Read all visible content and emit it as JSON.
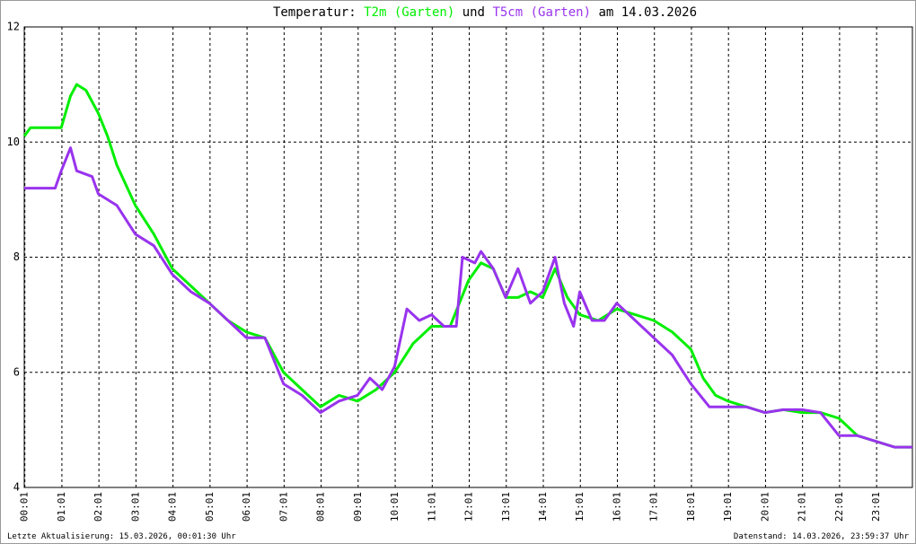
{
  "chart_data": {
    "type": "line",
    "title_prefix": "Temperatur:",
    "title_mid": "und",
    "title_suffix": "am 14.03.2026",
    "update_note": "Letzte Aktualisierung: 15.03.2026, 00:01:30 Uhr",
    "data_note": "Datenstand: 14.03.2026, 23:59:37 Uhr",
    "xlim": [
      0,
      1439
    ],
    "xticks": [
      {
        "value": 1,
        "label": "00:01"
      },
      {
        "value": 61,
        "label": "01:01"
      },
      {
        "value": 121,
        "label": "02:01"
      },
      {
        "value": 181,
        "label": "03:01"
      },
      {
        "value": 241,
        "label": "04:01"
      },
      {
        "value": 301,
        "label": "05:01"
      },
      {
        "value": 361,
        "label": "06:01"
      },
      {
        "value": 421,
        "label": "07:01"
      },
      {
        "value": 481,
        "label": "08:01"
      },
      {
        "value": 541,
        "label": "09:01"
      },
      {
        "value": 601,
        "label": "10:01"
      },
      {
        "value": 661,
        "label": "11:01"
      },
      {
        "value": 721,
        "label": "12:01"
      },
      {
        "value": 781,
        "label": "13:01"
      },
      {
        "value": 841,
        "label": "14:01"
      },
      {
        "value": 901,
        "label": "15:01"
      },
      {
        "value": 961,
        "label": "16:01"
      },
      {
        "value": 1021,
        "label": "17:01"
      },
      {
        "value": 1081,
        "label": "18:01"
      },
      {
        "value": 1141,
        "label": "19:01"
      },
      {
        "value": 1201,
        "label": "20:01"
      },
      {
        "value": 1261,
        "label": "21:01"
      },
      {
        "value": 1321,
        "label": "22:01"
      },
      {
        "value": 1381,
        "label": "23:01"
      }
    ],
    "ylim": [
      4,
      12
    ],
    "yticks": [
      4,
      6,
      8,
      10,
      12
    ],
    "grid": true,
    "series": [
      {
        "name": "T2m (Garten)",
        "color": "#00ee00",
        "x": [
          0,
          10,
          40,
          60,
          75,
          85,
          100,
          120,
          135,
          150,
          180,
          210,
          240,
          270,
          300,
          330,
          360,
          390,
          420,
          450,
          480,
          510,
          540,
          570,
          600,
          630,
          660,
          690,
          720,
          740,
          760,
          780,
          800,
          820,
          840,
          860,
          880,
          900,
          930,
          960,
          990,
          1020,
          1050,
          1080,
          1100,
          1120,
          1140,
          1170,
          1200,
          1230,
          1260,
          1290,
          1320,
          1350,
          1380,
          1410,
          1439
        ],
        "values": [
          10.1,
          10.25,
          10.25,
          10.25,
          10.8,
          11.0,
          10.9,
          10.5,
          10.1,
          9.6,
          8.9,
          8.4,
          7.8,
          7.5,
          7.2,
          6.9,
          6.7,
          6.6,
          6.0,
          5.7,
          5.4,
          5.6,
          5.5,
          5.7,
          6.0,
          6.5,
          6.8,
          6.8,
          7.6,
          7.9,
          7.8,
          7.3,
          7.3,
          7.4,
          7.3,
          7.8,
          7.3,
          7.0,
          6.9,
          7.1,
          7.0,
          6.9,
          6.7,
          6.4,
          5.9,
          5.6,
          5.5,
          5.4,
          5.3,
          5.35,
          5.3,
          5.3,
          5.2,
          4.9,
          4.8,
          4.7,
          4.7
        ]
      },
      {
        "name": "T5cm (Garten)",
        "color": "#9933ee",
        "x": [
          0,
          40,
          50,
          60,
          75,
          85,
          110,
          120,
          150,
          180,
          210,
          240,
          270,
          300,
          330,
          360,
          390,
          420,
          450,
          480,
          510,
          540,
          560,
          580,
          600,
          620,
          640,
          660,
          680,
          700,
          710,
          730,
          740,
          760,
          780,
          800,
          820,
          840,
          860,
          875,
          890,
          900,
          920,
          940,
          960,
          990,
          1020,
          1050,
          1080,
          1110,
          1140,
          1170,
          1200,
          1230,
          1260,
          1290,
          1320,
          1350,
          1380,
          1410,
          1439
        ],
        "values": [
          9.2,
          9.2,
          9.2,
          9.5,
          9.9,
          9.5,
          9.4,
          9.1,
          8.9,
          8.4,
          8.2,
          7.7,
          7.4,
          7.2,
          6.9,
          6.6,
          6.6,
          5.8,
          5.6,
          5.3,
          5.5,
          5.6,
          5.9,
          5.7,
          6.1,
          7.1,
          6.9,
          7.0,
          6.8,
          6.8,
          8.0,
          7.9,
          8.1,
          7.8,
          7.3,
          7.8,
          7.2,
          7.4,
          8.0,
          7.2,
          6.8,
          7.4,
          6.9,
          6.9,
          7.2,
          6.9,
          6.6,
          6.3,
          5.8,
          5.4,
          5.4,
          5.4,
          5.3,
          5.35,
          5.35,
          5.3,
          4.9,
          4.9,
          4.8,
          4.7,
          4.7
        ]
      }
    ]
  }
}
